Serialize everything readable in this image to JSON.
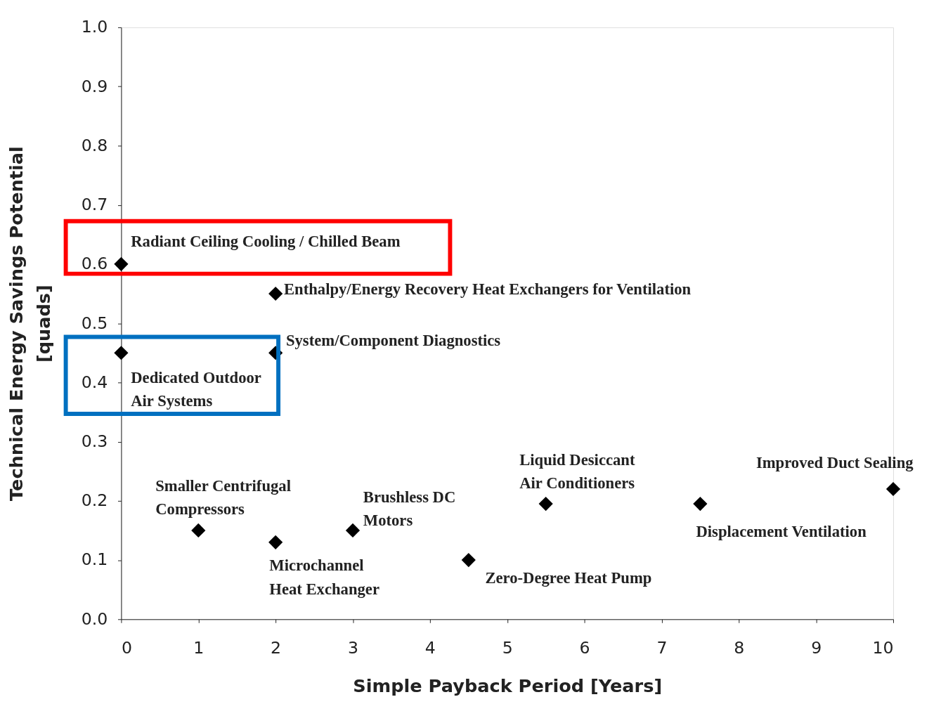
{
  "chart_data": {
    "type": "scatter",
    "xlabel": "Simple Payback Period [Years]",
    "ylabel": "Technical Energy Savings Potential\n[quads]",
    "series": [
      {
        "color": "#000000",
        "x": [
          0,
          2,
          2,
          0,
          1,
          2,
          3,
          4.5,
          5.5,
          7.5,
          10
        ],
        "values": [
          0.6,
          0.55,
          0.45,
          0.45,
          0.15,
          0.13,
          0.15,
          0.1,
          0.195,
          0.195,
          0.22
        ]
      }
    ],
    "marker": "diamond",
    "grid": false,
    "xlim": [
      0,
      10
    ],
    "xticks": [
      0,
      1,
      2,
      3,
      4,
      5,
      6,
      7,
      8,
      9,
      10
    ],
    "ylim": [
      0,
      1
    ],
    "yticks": [
      {
        "value": 0,
        "label": "0.0"
      },
      {
        "value": 0.1,
        "label": "0.1"
      },
      {
        "value": 0.2,
        "label": "0.2"
      },
      {
        "value": 0.3,
        "label": "0.3"
      },
      {
        "value": 0.4,
        "label": "0.4"
      },
      {
        "value": 0.5,
        "label": "0.5"
      },
      {
        "value": 0.6,
        "label": "0.6"
      },
      {
        "value": 0.7,
        "label": "0.7"
      },
      {
        "value": 0.8,
        "label": "0.8"
      },
      {
        "value": 0.9,
        "label": "0.9"
      },
      {
        "value": 1,
        "label": "1.0"
      }
    ],
    "annotations": [
      {
        "text": "Radiant Ceiling Cooling / Chilled Beam",
        "x": 0,
        "y": 0.6
      },
      {
        "text": "Enthalpy/Energy Recovery Heat Exchangers for Ventilation",
        "x": 2,
        "y": 0.55
      },
      {
        "text": "System/Component Diagnostics",
        "x": 2,
        "y": 0.45
      },
      {
        "text": "Dedicated Outdoor\nAir Systems",
        "x": 0,
        "y": 0.45
      },
      {
        "text": "Smaller Centrifugal\nCompressors",
        "x": 1,
        "y": 0.15
      },
      {
        "text": "Microchannel\nHeat Exchanger",
        "x": 2,
        "y": 0.13
      },
      {
        "text": "Brushless DC\nMotors",
        "x": 3,
        "y": 0.15
      },
      {
        "text": "Zero-Degree Heat Pump",
        "x": 4.5,
        "y": 0.1
      },
      {
        "text": "Liquid Desiccant\nAir Conditioners",
        "x": 5.5,
        "y": 0.195
      },
      {
        "text": "Displacement Ventilation",
        "x": 7.5,
        "y": 0.195
      },
      {
        "text": "Improved Duct Sealing",
        "x": 10,
        "y": 0.22
      }
    ]
  }
}
